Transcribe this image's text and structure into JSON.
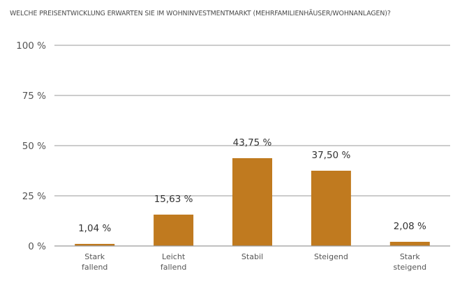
{
  "chart_data": {
    "type": "bar",
    "title": "WELCHE PREISENTWICKLUNG ERWARTEN SIE IM WOHNINVESTMENTMARKT (MEHRFAMILIENHÄUSER/WOHNANLAGEN)?",
    "categories": [
      [
        "Stark",
        "fallend"
      ],
      [
        "Leicht",
        "fallend"
      ],
      [
        "Stabil"
      ],
      [
        "Steigend"
      ],
      [
        "Stark",
        "steigend"
      ]
    ],
    "values": [
      1.04,
      15.63,
      43.75,
      37.5,
      2.08
    ],
    "data_labels": [
      "1,04 %",
      "15,63 %",
      "43,75 %",
      "37,50 %",
      "2,08 %"
    ],
    "yticks": [
      0,
      25,
      50,
      75,
      100
    ],
    "ytick_labels": [
      "0 %",
      "25 %",
      "50 %",
      "75 %",
      "100 %"
    ],
    "ylim": [
      0,
      100
    ],
    "xlabel": "",
    "ylabel": "",
    "grid": true,
    "bar_color": "#C07A1F",
    "grid_color": "#9a9a9a"
  }
}
